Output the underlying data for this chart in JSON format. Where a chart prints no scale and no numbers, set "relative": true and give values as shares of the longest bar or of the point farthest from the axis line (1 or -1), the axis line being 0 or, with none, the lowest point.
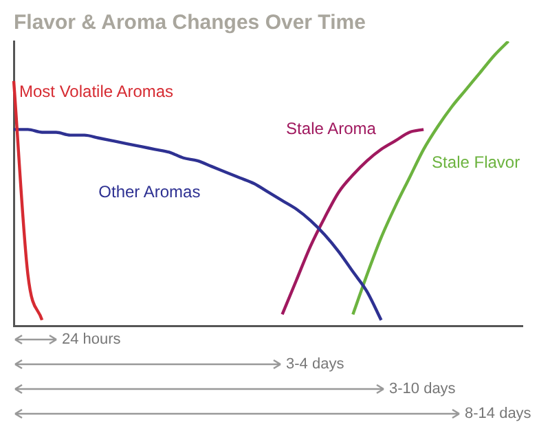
{
  "chart_data": {
    "type": "line",
    "title": "Flavor & Aroma Changes Over Time",
    "relative": true,
    "tick_labels": false,
    "grid": false,
    "legend": false,
    "marker": "none",
    "categories": [
      null,
      null,
      null,
      null,
      null,
      null,
      null,
      null,
      null,
      null,
      null,
      null,
      null,
      null,
      null,
      null,
      null,
      null,
      null,
      null,
      null,
      null,
      null,
      null,
      null,
      null,
      null,
      null,
      null,
      null,
      null,
      null,
      null,
      null,
      null,
      null,
      null
    ],
    "series": [
      {
        "name": "Most Volatile Aromas",
        "color": "#d62b32",
        "values": [
          0.86,
          0.18,
          0.02,
          null,
          null,
          null,
          null,
          null,
          null,
          null,
          null,
          null,
          null,
          null,
          null,
          null,
          null,
          null,
          null,
          null,
          null,
          null,
          null,
          null,
          null,
          null,
          null,
          null,
          null,
          null,
          null,
          null,
          null,
          null,
          null,
          null,
          null
        ]
      },
      {
        "name": "Other Aromas",
        "color": "#2e3192",
        "values": [
          0.69,
          0.69,
          0.68,
          0.68,
          0.67,
          0.67,
          0.66,
          0.65,
          0.64,
          0.63,
          0.62,
          0.61,
          0.59,
          0.58,
          0.56,
          0.54,
          0.52,
          0.5,
          0.47,
          0.44,
          0.41,
          0.37,
          0.32,
          0.26,
          0.19,
          0.12,
          0.02,
          null,
          null,
          null,
          null,
          null,
          null,
          null,
          null,
          null,
          null
        ]
      },
      {
        "name": "Stale Aroma",
        "color": "#a0195f",
        "values": [
          null,
          null,
          null,
          null,
          null,
          null,
          null,
          null,
          null,
          null,
          null,
          null,
          null,
          null,
          null,
          null,
          null,
          null,
          null,
          0.04,
          0.16,
          0.28,
          0.38,
          0.47,
          0.53,
          0.58,
          0.62,
          0.65,
          0.68,
          0.69,
          null,
          null,
          null,
          null,
          null,
          null,
          null
        ]
      },
      {
        "name": "Stale Flavor",
        "color": "#6cb33f",
        "values": [
          null,
          null,
          null,
          null,
          null,
          null,
          null,
          null,
          null,
          null,
          null,
          null,
          null,
          null,
          null,
          null,
          null,
          null,
          null,
          null,
          null,
          null,
          null,
          null,
          0.04,
          0.18,
          0.31,
          0.42,
          0.52,
          0.62,
          0.7,
          0.77,
          0.83,
          0.89,
          0.95,
          1,
          null
        ]
      }
    ],
    "annotations": [
      "24 hours",
      "3-4 days",
      "3-10 days",
      "8-14 days"
    ]
  }
}
